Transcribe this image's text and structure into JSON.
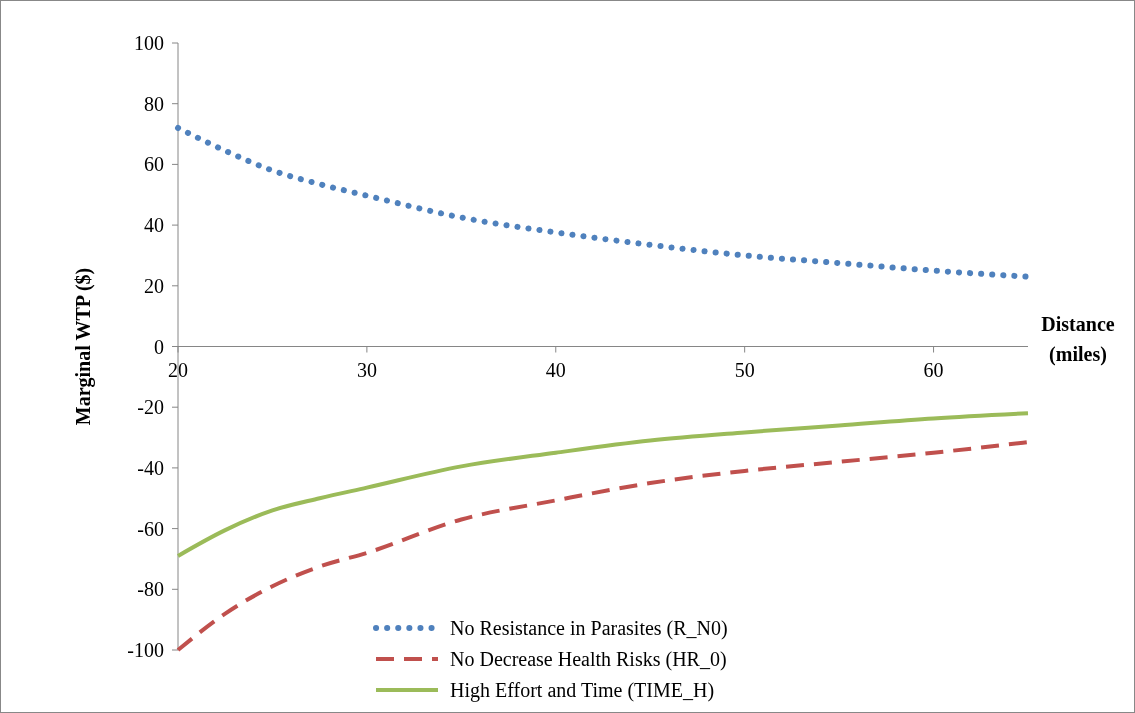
{
  "chart_data": {
    "type": "line",
    "xlabel": "Distance (miles)",
    "ylabel": "Marginal WTP ($)",
    "x": [
      20,
      22.5,
      25,
      27.5,
      30,
      35,
      40,
      45,
      50,
      55,
      60,
      65
    ],
    "xlim": [
      20,
      65
    ],
    "xticks": [
      20,
      30,
      40,
      50,
      60
    ],
    "ylim": [
      -100,
      100
    ],
    "yticks": [
      -100,
      -80,
      -60,
      -40,
      -20,
      0,
      20,
      40,
      60,
      80,
      100
    ],
    "grid": false,
    "legend": "bottom",
    "series": [
      {
        "name": "No Resistance in Parasites (R_N0)",
        "color": "#4f81bd",
        "line_style": "dotted",
        "values": [
          72,
          64.5,
          58,
          53.5,
          49.7,
          42.5,
          37.6,
          33.5,
          30,
          27.5,
          25,
          23
        ]
      },
      {
        "name": "No Decrease Health Risks (HR_0)",
        "color": "#c0504d",
        "line_style": "dashed",
        "values": [
          -100,
          -88,
          -79,
          -72.5,
          -68,
          -57,
          -50.7,
          -45,
          -41,
          -38,
          -35,
          -31.5
        ]
      },
      {
        "name": "High Effort and Time (TIME_H)",
        "color": "#9bbb59",
        "line_style": "solid",
        "values": [
          -69,
          -60.5,
          -54,
          -50,
          -46.5,
          -39.5,
          -35,
          -31,
          -28.3,
          -26,
          -23.7,
          -22
        ]
      }
    ]
  }
}
